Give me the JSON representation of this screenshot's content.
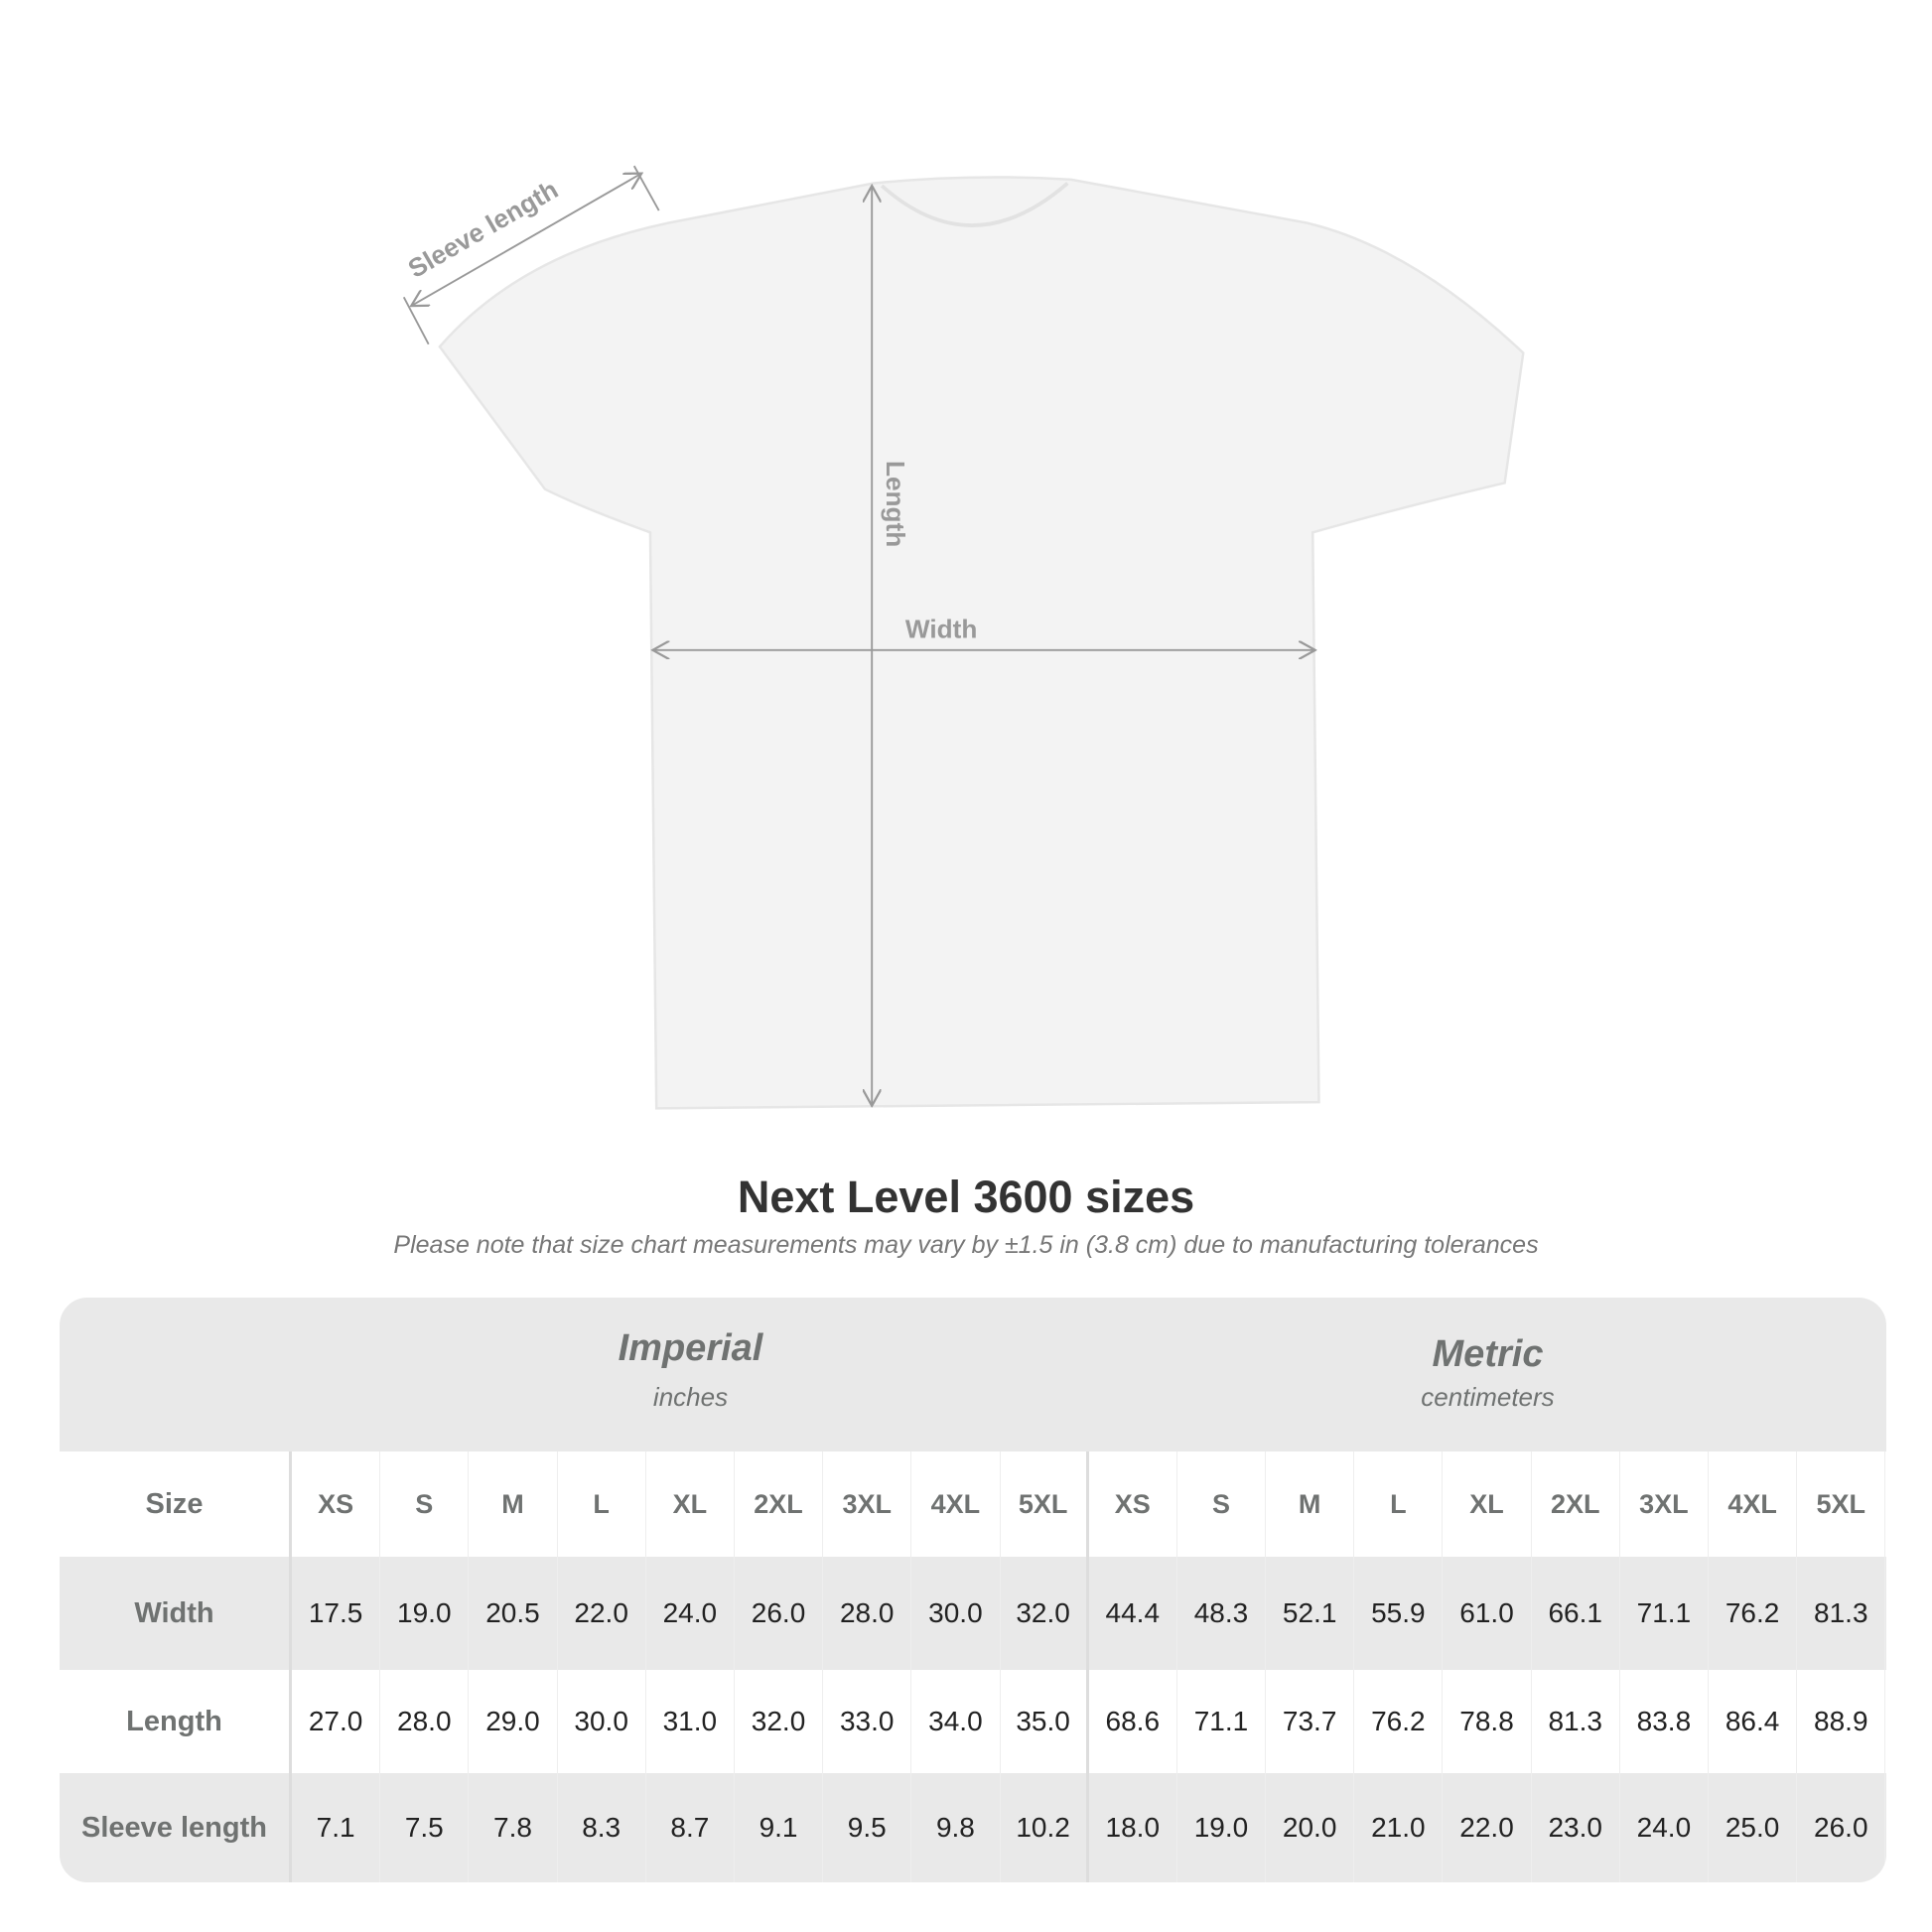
{
  "diagram": {
    "sleeve_label": "Sleeve length",
    "length_label": "Length",
    "width_label": "Width"
  },
  "title": "Next Level 3600 sizes",
  "subtitle": "Please note that size chart measurements may vary by ±1.5 in (3.8 cm) due to manufacturing tolerances",
  "table": {
    "imperial": {
      "name": "Imperial",
      "unit": "inches"
    },
    "metric": {
      "name": "Metric",
      "unit": "centimeters"
    },
    "rows": [
      {
        "label": "Size",
        "imperial": [
          "XS",
          "S",
          "M",
          "L",
          "XL",
          "2XL",
          "3XL",
          "4XL",
          "5XL"
        ],
        "metric": [
          "XS",
          "S",
          "M",
          "L",
          "XL",
          "2XL",
          "3XL",
          "4XL",
          "5XL"
        ]
      },
      {
        "label": "Width",
        "imperial": [
          "17.5",
          "19.0",
          "20.5",
          "22.0",
          "24.0",
          "26.0",
          "28.0",
          "30.0",
          "32.0"
        ],
        "metric": [
          "44.4",
          "48.3",
          "52.1",
          "55.9",
          "61.0",
          "66.1",
          "71.1",
          "76.2",
          "81.3"
        ]
      },
      {
        "label": "Length",
        "imperial": [
          "27.0",
          "28.0",
          "29.0",
          "30.0",
          "31.0",
          "32.0",
          "33.0",
          "34.0",
          "35.0"
        ],
        "metric": [
          "68.6",
          "71.1",
          "73.7",
          "76.2",
          "78.8",
          "81.3",
          "83.8",
          "86.4",
          "88.9"
        ]
      },
      {
        "label": "Sleeve length",
        "imperial": [
          "7.1",
          "7.5",
          "7.8",
          "8.3",
          "8.7",
          "9.1",
          "9.5",
          "9.8",
          "10.2"
        ],
        "metric": [
          "18.0",
          "19.0",
          "20.0",
          "21.0",
          "22.0",
          "23.0",
          "24.0",
          "25.0",
          "26.0"
        ]
      }
    ]
  }
}
